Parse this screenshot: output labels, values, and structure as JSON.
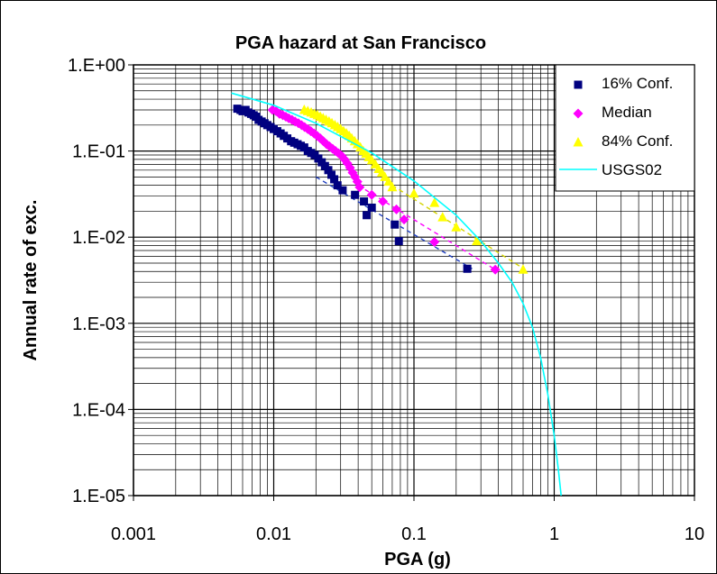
{
  "chart_data": {
    "type": "scatter",
    "title": "PGA hazard at San Francisco",
    "xlabel": "PGA (g)",
    "ylabel": "Annual rate of exc.",
    "x_scale": "log",
    "y_scale": "log",
    "xlim": [
      0.001,
      10
    ],
    "ylim": [
      1e-05,
      1
    ],
    "x_ticks": [
      "0.001",
      "0.01",
      "0.1",
      "1",
      "10"
    ],
    "y_ticks": [
      "1.E-05",
      "1.E-04",
      "1.E-03",
      "1.E-02",
      "1.E-01",
      "1.E+00"
    ],
    "grid": true,
    "legend_position": "top-right",
    "series": [
      {
        "name": "16% Conf.",
        "marker": "square",
        "color": "#000080",
        "points": [
          [
            0.0055,
            0.31
          ],
          [
            0.0058,
            0.3
          ],
          [
            0.006,
            0.29
          ],
          [
            0.0063,
            0.3
          ],
          [
            0.0066,
            0.28
          ],
          [
            0.0069,
            0.27
          ],
          [
            0.0072,
            0.26
          ],
          [
            0.0075,
            0.25
          ],
          [
            0.0078,
            0.23
          ],
          [
            0.0082,
            0.22
          ],
          [
            0.0086,
            0.21
          ],
          [
            0.009,
            0.2
          ],
          [
            0.0095,
            0.19
          ],
          [
            0.01,
            0.18
          ],
          [
            0.0106,
            0.17
          ],
          [
            0.0112,
            0.16
          ],
          [
            0.0118,
            0.15
          ],
          [
            0.0125,
            0.14
          ],
          [
            0.0133,
            0.13
          ],
          [
            0.014,
            0.125
          ],
          [
            0.0148,
            0.12
          ],
          [
            0.0156,
            0.115
          ],
          [
            0.0165,
            0.11
          ],
          [
            0.0175,
            0.1
          ],
          [
            0.0185,
            0.095
          ],
          [
            0.0196,
            0.09
          ],
          [
            0.0208,
            0.082
          ],
          [
            0.022,
            0.074
          ],
          [
            0.0232,
            0.067
          ],
          [
            0.0245,
            0.06
          ],
          [
            0.0258,
            0.053
          ],
          [
            0.027,
            0.047
          ],
          [
            0.0285,
            0.04
          ],
          [
            0.031,
            0.035
          ],
          [
            0.038,
            0.031
          ],
          [
            0.044,
            0.026
          ],
          [
            0.046,
            0.018
          ],
          [
            0.05,
            0.022
          ],
          [
            0.073,
            0.014
          ],
          [
            0.078,
            0.009
          ],
          [
            0.24,
            0.0043
          ]
        ],
        "trendline": [
          [
            0.02,
            0.05
          ],
          [
            0.26,
            0.0043
          ]
        ]
      },
      {
        "name": "Median",
        "marker": "diamond",
        "color": "#ff00ff",
        "points": [
          [
            0.0098,
            0.3
          ],
          [
            0.0104,
            0.29
          ],
          [
            0.011,
            0.27
          ],
          [
            0.0116,
            0.26
          ],
          [
            0.0122,
            0.25
          ],
          [
            0.0128,
            0.24
          ],
          [
            0.0135,
            0.23
          ],
          [
            0.0142,
            0.22
          ],
          [
            0.015,
            0.21
          ],
          [
            0.0158,
            0.2
          ],
          [
            0.0166,
            0.19
          ],
          [
            0.0175,
            0.18
          ],
          [
            0.0184,
            0.17
          ],
          [
            0.0194,
            0.16
          ],
          [
            0.0204,
            0.15
          ],
          [
            0.0215,
            0.14
          ],
          [
            0.0226,
            0.13
          ],
          [
            0.0238,
            0.12
          ],
          [
            0.025,
            0.113
          ],
          [
            0.0263,
            0.106
          ],
          [
            0.0276,
            0.1
          ],
          [
            0.029,
            0.094
          ],
          [
            0.0305,
            0.088
          ],
          [
            0.032,
            0.08
          ],
          [
            0.0335,
            0.072
          ],
          [
            0.035,
            0.064
          ],
          [
            0.0365,
            0.056
          ],
          [
            0.038,
            0.05
          ],
          [
            0.0395,
            0.044
          ],
          [
            0.041,
            0.038
          ],
          [
            0.05,
            0.031
          ],
          [
            0.06,
            0.026
          ],
          [
            0.075,
            0.021
          ],
          [
            0.085,
            0.016
          ],
          [
            0.14,
            0.0088
          ],
          [
            0.38,
            0.0042
          ]
        ],
        "trendline": [
          [
            0.04,
            0.04
          ],
          [
            0.38,
            0.0042
          ]
        ]
      },
      {
        "name": "84% Conf.",
        "marker": "triangle",
        "color": "#ffff00",
        "points": [
          [
            0.0165,
            0.3
          ],
          [
            0.0175,
            0.29
          ],
          [
            0.0185,
            0.28
          ],
          [
            0.0195,
            0.27
          ],
          [
            0.0205,
            0.26
          ],
          [
            0.0215,
            0.25
          ],
          [
            0.0225,
            0.24
          ],
          [
            0.0236,
            0.23
          ],
          [
            0.0248,
            0.22
          ],
          [
            0.026,
            0.21
          ],
          [
            0.0273,
            0.2
          ],
          [
            0.0286,
            0.19
          ],
          [
            0.03,
            0.18
          ],
          [
            0.0315,
            0.17
          ],
          [
            0.033,
            0.16
          ],
          [
            0.0345,
            0.15
          ],
          [
            0.036,
            0.14
          ],
          [
            0.0378,
            0.13
          ],
          [
            0.0396,
            0.12
          ],
          [
            0.0415,
            0.11
          ],
          [
            0.0435,
            0.1
          ],
          [
            0.0455,
            0.093
          ],
          [
            0.0476,
            0.085
          ],
          [
            0.05,
            0.078
          ],
          [
            0.053,
            0.07
          ],
          [
            0.056,
            0.062
          ],
          [
            0.059,
            0.056
          ],
          [
            0.062,
            0.05
          ],
          [
            0.066,
            0.044
          ],
          [
            0.07,
            0.038
          ],
          [
            0.1,
            0.032
          ],
          [
            0.14,
            0.025
          ],
          [
            0.16,
            0.017
          ],
          [
            0.2,
            0.013
          ],
          [
            0.28,
            0.009
          ],
          [
            0.6,
            0.0042
          ]
        ],
        "trendline": [
          [
            0.07,
            0.04
          ],
          [
            0.62,
            0.0042
          ]
        ]
      },
      {
        "name": "USGS02",
        "marker": "line",
        "color": "#00ffff",
        "points": [
          [
            0.005,
            0.47
          ],
          [
            0.01,
            0.34
          ],
          [
            0.02,
            0.21
          ],
          [
            0.05,
            0.095
          ],
          [
            0.1,
            0.045
          ],
          [
            0.2,
            0.018
          ],
          [
            0.3,
            0.009
          ],
          [
            0.4,
            0.005
          ],
          [
            0.5,
            0.003
          ],
          [
            0.6,
            0.0017
          ],
          [
            0.7,
            0.0009
          ],
          [
            0.8,
            0.0004
          ],
          [
            0.9,
            0.00015
          ],
          [
            1.0,
            5e-05
          ],
          [
            1.07,
            2e-05
          ],
          [
            1.12,
            1e-05
          ]
        ]
      }
    ]
  }
}
